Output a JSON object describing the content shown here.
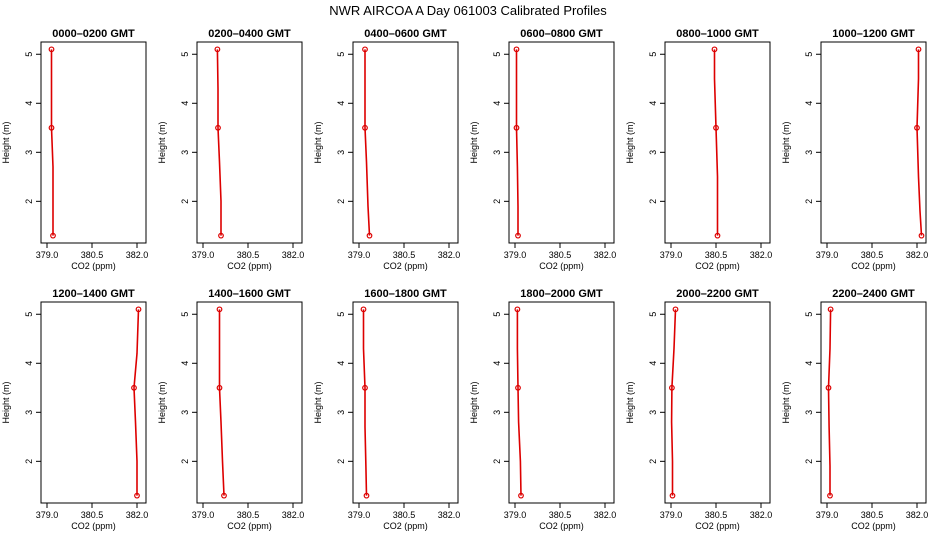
{
  "page": {
    "title": "NWR AIRCOA A  Day 061003  Calibrated Profiles"
  },
  "axes": {
    "xlabel": "CO2 (ppm)",
    "ylabel": "Height (m)",
    "x_ticks": [
      379.0,
      380.5,
      382.0
    ],
    "x_tick_labels": [
      "379.0",
      "380.5",
      "382.0"
    ],
    "y_ticks": [
      2,
      3,
      4,
      5
    ],
    "y_tick_labels": [
      "2",
      "3",
      "4",
      "5"
    ],
    "xlim": [
      378.8,
      382.3
    ],
    "ylim": [
      1.15,
      5.25
    ]
  },
  "colors": {
    "line": "#dd0000",
    "marker": "#dd0000",
    "axis": "#000000"
  },
  "chart_data": [
    {
      "type": "line",
      "title": "0000–0200 GMT",
      "x": [
        379.2,
        379.2,
        379.2,
        379.15,
        379.15,
        379.15
      ],
      "y": [
        1.3,
        1.9,
        2.7,
        3.5,
        4.3,
        5.1
      ]
    },
    {
      "type": "line",
      "title": "0200–0400 GMT",
      "x": [
        379.6,
        379.6,
        379.55,
        379.5,
        379.5,
        379.48
      ],
      "y": [
        1.3,
        2.0,
        2.8,
        3.5,
        4.3,
        5.1
      ]
    },
    {
      "type": "line",
      "title": "0400–0600 GMT",
      "x": [
        379.35,
        379.3,
        379.25,
        379.2,
        379.2,
        379.2
      ],
      "y": [
        1.3,
        1.9,
        2.8,
        3.5,
        4.4,
        5.1
      ]
    },
    {
      "type": "line",
      "title": "0600–0800 GMT",
      "x": [
        379.1,
        379.1,
        379.08,
        379.05,
        379.05,
        379.05
      ],
      "y": [
        1.3,
        1.9,
        2.7,
        3.5,
        4.3,
        5.1
      ]
    },
    {
      "type": "line",
      "title": "0800–1000 GMT",
      "x": [
        380.55,
        380.55,
        380.55,
        380.5,
        380.45,
        380.45
      ],
      "y": [
        1.3,
        1.9,
        2.5,
        3.5,
        4.5,
        5.1
      ]
    },
    {
      "type": "line",
      "title": "1000–1200 GMT",
      "x": [
        382.15,
        382.1,
        382.05,
        382.0,
        382.05,
        382.05
      ],
      "y": [
        1.3,
        1.8,
        2.5,
        3.5,
        4.5,
        5.1
      ]
    },
    {
      "type": "line",
      "title": "1200–1400 GMT",
      "x": [
        382.0,
        382.0,
        381.95,
        381.9,
        382.0,
        382.05
      ],
      "y": [
        1.3,
        2.0,
        2.8,
        3.5,
        4.2,
        5.1
      ]
    },
    {
      "type": "line",
      "title": "1400–1600 GMT",
      "x": [
        379.7,
        379.65,
        379.6,
        379.55,
        379.55,
        379.55
      ],
      "y": [
        1.3,
        2.0,
        2.8,
        3.5,
        4.3,
        5.1
      ]
    },
    {
      "type": "line",
      "title": "1600–1800 GMT",
      "x": [
        379.25,
        379.23,
        379.2,
        379.2,
        379.15,
        379.15
      ],
      "y": [
        1.3,
        1.9,
        2.7,
        3.5,
        4.3,
        5.1
      ]
    },
    {
      "type": "line",
      "title": "1800–2000 GMT",
      "x": [
        379.2,
        379.18,
        379.12,
        379.1,
        379.08,
        379.08
      ],
      "y": [
        1.3,
        2.0,
        2.8,
        3.5,
        4.3,
        5.1
      ]
    },
    {
      "type": "line",
      "title": "2000–2200 GMT",
      "x": [
        379.05,
        379.05,
        379.02,
        379.03,
        379.1,
        379.15
      ],
      "y": [
        1.3,
        2.0,
        2.8,
        3.5,
        4.3,
        5.1
      ]
    },
    {
      "type": "line",
      "title": "2200–2400 GMT",
      "x": [
        379.1,
        379.1,
        379.07,
        379.05,
        379.1,
        379.12
      ],
      "y": [
        1.3,
        1.9,
        2.7,
        3.5,
        4.3,
        5.1
      ]
    }
  ]
}
